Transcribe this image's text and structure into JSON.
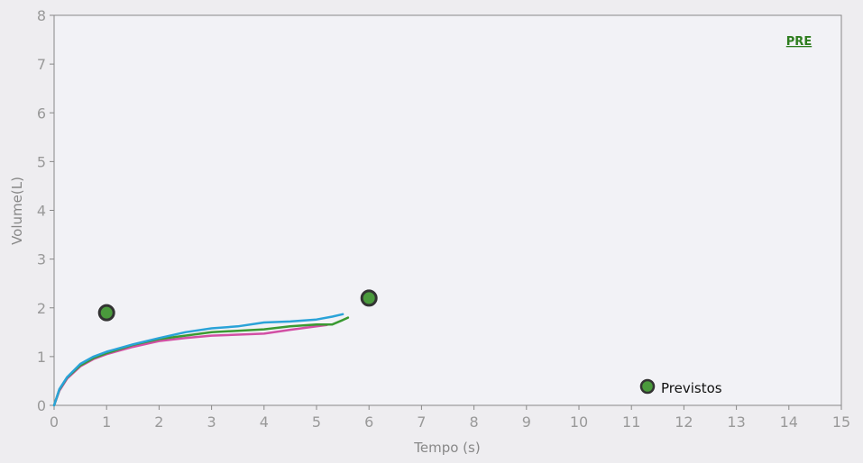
{
  "chart_data": {
    "type": "line",
    "title": "PRE",
    "xlabel": "Tempo (s)",
    "ylabel": "Volume(L)",
    "xlim": [
      0,
      15
    ],
    "ylim": [
      0,
      8
    ],
    "x_ticks": [
      "0",
      "1",
      "2",
      "3",
      "4",
      "5",
      "6",
      "7",
      "8",
      "9",
      "10",
      "11",
      "12",
      "13",
      "14",
      "15"
    ],
    "y_ticks": [
      "0",
      "1",
      "2",
      "3",
      "4",
      "5",
      "6",
      "7",
      "8"
    ],
    "grid": false,
    "legend": "bottom-right",
    "legend_entries": [
      {
        "label": "Previstos",
        "marker": "circle",
        "color": "#4a9a3c"
      }
    ],
    "predicted_points": [
      {
        "x": 1.0,
        "y": 1.9
      },
      {
        "x": 6.0,
        "y": 2.2
      }
    ],
    "series": [
      {
        "color": "#d24fa4",
        "x": [
          0,
          0.1,
          0.25,
          0.5,
          0.75,
          1.0,
          1.5,
          2.0,
          2.5,
          3.0,
          3.5,
          4.0,
          4.5,
          5.0,
          5.2
        ],
        "y": [
          0,
          0.3,
          0.55,
          0.8,
          0.95,
          1.05,
          1.2,
          1.32,
          1.38,
          1.43,
          1.45,
          1.47,
          1.55,
          1.62,
          1.65
        ]
      },
      {
        "color": "#3a9a32",
        "x": [
          0,
          0.1,
          0.25,
          0.5,
          0.75,
          1.0,
          1.5,
          2.0,
          2.5,
          3.0,
          3.5,
          4.0,
          4.5,
          5.0,
          5.3,
          5.5,
          5.6
        ],
        "y": [
          0,
          0.32,
          0.57,
          0.82,
          0.97,
          1.07,
          1.24,
          1.36,
          1.43,
          1.5,
          1.53,
          1.56,
          1.62,
          1.66,
          1.66,
          1.75,
          1.8
        ]
      },
      {
        "color": "#2aa3d8",
        "x": [
          0,
          0.1,
          0.25,
          0.5,
          0.75,
          1.0,
          1.5,
          2.0,
          2.5,
          3.0,
          3.5,
          4.0,
          4.5,
          5.0,
          5.3,
          5.5
        ],
        "y": [
          0,
          0.33,
          0.58,
          0.85,
          1.0,
          1.1,
          1.25,
          1.38,
          1.5,
          1.58,
          1.62,
          1.7,
          1.72,
          1.76,
          1.82,
          1.87
        ]
      }
    ]
  }
}
